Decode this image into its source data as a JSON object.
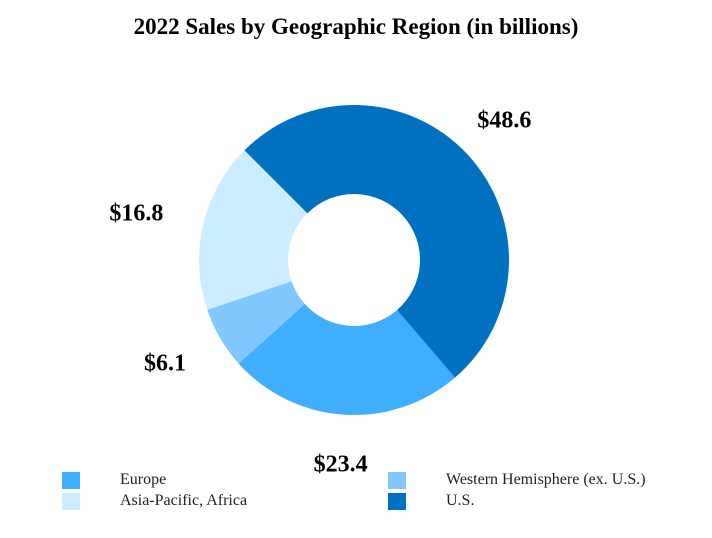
{
  "chart_data": {
    "type": "pie",
    "title": "2022 Sales by Geographic Region (in billions)",
    "slices": [
      {
        "name": "U.S.",
        "value": 48.6,
        "label": "$48.6",
        "color": "#0070C0"
      },
      {
        "name": "Europe",
        "value": 23.4,
        "label": "$23.4",
        "color": "#3FAEFF"
      },
      {
        "name": "Western Hemisphere (ex. U.S.)",
        "value": 6.1,
        "label": "$6.1",
        "color": "#80C8FF"
      },
      {
        "name": "Asia-Pacific, Africa",
        "value": 16.8,
        "label": "$16.8",
        "color": "#CCEDFF"
      }
    ],
    "donut": true,
    "start_angle_deg": -45,
    "direction": "clockwise",
    "legend_position": "bottom",
    "legend": [
      {
        "name": "Europe",
        "color": "#3FAEFF"
      },
      {
        "name": "Western Hemisphere (ex. U.S.)",
        "color": "#80C8FF"
      },
      {
        "name": "Asia-Pacific, Africa",
        "color": "#CCEDFF"
      },
      {
        "name": "U.S.",
        "color": "#0070C0"
      }
    ]
  }
}
